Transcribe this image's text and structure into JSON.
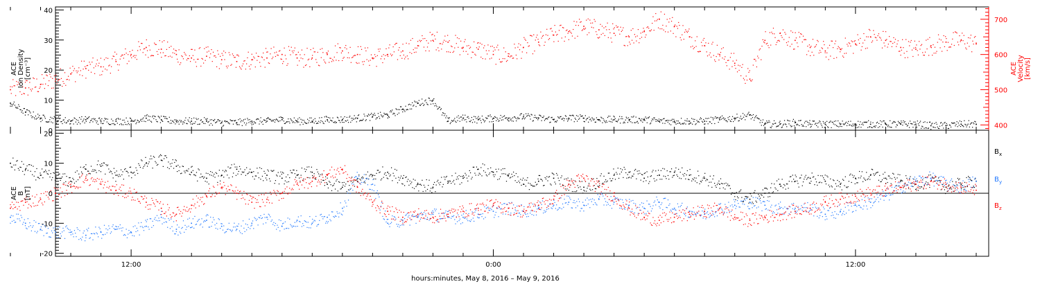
{
  "chart_data": [
    {
      "type": "scatter",
      "panel": "top",
      "ylabel_left": [
        "ACE",
        "Ion Density",
        "[cm⁻³]"
      ],
      "ylabel_right": [
        "ACE",
        "Velocity",
        "[km/s]"
      ],
      "ylim_left": [
        0,
        41
      ],
      "ylim_right": [
        385,
        735
      ],
      "yticks_left": [
        "0",
        "10",
        "20",
        "30",
        "40"
      ],
      "yticks_right": [
        "400",
        "500",
        "600",
        "700"
      ],
      "colors": {
        "density": "#000000",
        "velocity": "#ff0000"
      },
      "series": [
        {
          "name": "Ion Density",
          "axis": "left",
          "color": "#000000",
          "x_hours": [
            0,
            0.5,
            1,
            1.5,
            2,
            2.5,
            3,
            3.5,
            4,
            4.5,
            5,
            5.5,
            6,
            6.5,
            7,
            7.5,
            8,
            8.5,
            9,
            9.5,
            10,
            10.5,
            11,
            11.5,
            12,
            12.5,
            13,
            13.5,
            14,
            14.5,
            15,
            15.5,
            16,
            16.5,
            17,
            17.5,
            18,
            18.5,
            19,
            19.5,
            20,
            20.5,
            21,
            21.5,
            22,
            22.5,
            23,
            23.5,
            24,
            24.5,
            25,
            25.5,
            26,
            26.5,
            27,
            27.5,
            28,
            28.5,
            29,
            29.5,
            30,
            30.5,
            31,
            31.5,
            32
          ],
          "values": [
            9,
            6,
            4,
            3.5,
            3,
            3.5,
            3,
            3,
            3,
            4,
            3.5,
            3,
            3,
            3,
            2.5,
            2.5,
            3,
            3,
            3.5,
            3,
            3,
            3.5,
            3.5,
            4,
            4.5,
            5,
            7,
            9,
            10,
            3,
            4,
            3.5,
            4,
            4,
            4.5,
            4,
            3.5,
            4,
            4,
            3.5,
            3.5,
            3.5,
            3.5,
            3,
            3,
            3,
            3,
            3.5,
            4,
            5,
            2,
            2,
            2.5,
            2,
            2,
            2,
            2,
            2,
            2,
            2,
            2,
            1.5,
            1.5,
            2,
            2
          ]
        },
        {
          "name": "Velocity",
          "axis": "right",
          "color": "#ff0000",
          "x_hours": [
            0,
            0.5,
            1,
            1.5,
            2,
            2.5,
            3,
            3.5,
            4,
            4.5,
            5,
            5.5,
            6,
            6.5,
            7,
            7.5,
            8,
            8.5,
            9,
            9.5,
            10,
            10.5,
            11,
            11.5,
            12,
            12.5,
            13,
            13.5,
            14,
            14.5,
            15,
            15.5,
            16,
            16.5,
            17,
            17.5,
            18,
            18.5,
            19,
            19.5,
            20,
            20.5,
            21,
            21.5,
            22,
            22.5,
            23,
            23.5,
            24,
            24.5,
            25,
            25.5,
            26,
            26.5,
            27,
            27.5,
            28,
            28.5,
            29,
            29.5,
            30,
            30.5,
            31,
            31.5,
            32
          ],
          "values": [
            500,
            505,
            515,
            530,
            545,
            560,
            565,
            580,
            600,
            620,
            615,
            600,
            590,
            595,
            585,
            580,
            585,
            590,
            600,
            590,
            590,
            600,
            610,
            600,
            590,
            600,
            610,
            625,
            640,
            635,
            620,
            615,
            600,
            595,
            620,
            635,
            655,
            665,
            680,
            670,
            660,
            650,
            665,
            700,
            680,
            650,
            625,
            600,
            575,
            530,
            640,
            660,
            640,
            620,
            610,
            615,
            630,
            650,
            640,
            620,
            615,
            625,
            635,
            640,
            630
          ]
        }
      ]
    },
    {
      "type": "scatter",
      "panel": "bottom",
      "ylabel": [
        "ACE",
        "B",
        "[nT]"
      ],
      "ylim": [
        -21,
        21
      ],
      "yticks": [
        "-20",
        "-10",
        "0",
        "10",
        "20"
      ],
      "zero_line": true,
      "colors": {
        "Bx": "#000000",
        "By": "#1f77ff",
        "Bz": "#ff0000"
      },
      "legend": [
        {
          "label": "B",
          "sub": "x",
          "color": "#000000"
        },
        {
          "label": "B",
          "sub": "y",
          "color": "#1f77ff"
        },
        {
          "label": "B",
          "sub": "z",
          "color": "#ff0000"
        }
      ],
      "legend_position": "right",
      "series": [
        {
          "name": "Bx",
          "color": "#000000",
          "x_hours": [
            0,
            0.5,
            1,
            1.5,
            2,
            2.5,
            3,
            3.5,
            4,
            4.5,
            5,
            5.5,
            6,
            6.5,
            7,
            7.5,
            8,
            8.5,
            9,
            9.5,
            10,
            10.5,
            11,
            11.5,
            12,
            12.5,
            13,
            13.5,
            14,
            14.5,
            15,
            15.5,
            16,
            16.5,
            17,
            17.5,
            18,
            18.5,
            19,
            19.5,
            20,
            20.5,
            21,
            21.5,
            22,
            22.5,
            23,
            23.5,
            24,
            24.5,
            25,
            25.5,
            26,
            26.5,
            27,
            27.5,
            28,
            28.5,
            29,
            29.5,
            30,
            30.5,
            31,
            31.5,
            32
          ],
          "values": [
            10,
            8,
            6,
            5,
            4,
            8,
            9,
            6,
            7,
            10,
            11,
            9,
            7,
            5,
            6,
            8,
            7,
            6,
            5,
            6,
            7,
            3,
            2,
            4,
            6,
            7,
            5,
            3,
            2,
            4,
            5,
            8,
            7,
            6,
            3,
            4,
            5,
            3,
            2,
            4,
            6,
            7,
            5,
            6,
            7,
            6,
            5,
            3,
            0,
            -2,
            0,
            3,
            4,
            5,
            4,
            3,
            5,
            6,
            5,
            4,
            3,
            4,
            2,
            3,
            4
          ]
        },
        {
          "name": "By",
          "color": "#1f77ff",
          "x_hours": [
            0,
            0.5,
            1,
            1.5,
            2,
            2.5,
            3,
            3.5,
            4,
            4.5,
            5,
            5.5,
            6,
            6.5,
            7,
            7.5,
            8,
            8.5,
            9,
            9.5,
            10,
            10.5,
            11,
            11.5,
            12,
            12.5,
            13,
            13.5,
            14,
            14.5,
            15,
            15.5,
            16,
            16.5,
            17,
            17.5,
            18,
            18.5,
            19,
            19.5,
            20,
            20.5,
            21,
            21.5,
            22,
            22.5,
            23,
            23.5,
            24,
            24.5,
            25,
            25.5,
            26,
            26.5,
            27,
            27.5,
            28,
            28.5,
            29,
            29.5,
            30,
            30.5,
            31,
            31.5,
            32
          ],
          "values": [
            -8,
            -10,
            -12,
            -13,
            -13,
            -14,
            -13,
            -12,
            -13,
            -11,
            -8,
            -12,
            -10,
            -9,
            -11,
            -12,
            -10,
            -8,
            -11,
            -9,
            -10,
            -8,
            -5,
            5,
            3,
            -10,
            -9,
            -8,
            -7,
            -8,
            -8,
            -7,
            -6,
            -5,
            -6,
            -5,
            -4,
            -3,
            -4,
            -2,
            -3,
            -4,
            -5,
            -3,
            -5,
            -6,
            -7,
            -5,
            -4,
            -3,
            -4,
            -5,
            -5,
            -5,
            -7,
            -6,
            -4,
            -3,
            -1,
            2,
            4,
            5,
            3,
            2,
            4
          ]
        },
        {
          "name": "Bz",
          "color": "#ff0000",
          "x_hours": [
            0,
            0.5,
            1,
            1.5,
            2,
            2.5,
            3,
            3.5,
            4,
            4.5,
            5,
            5.5,
            6,
            6.5,
            7,
            7.5,
            8,
            8.5,
            9,
            9.5,
            10,
            10.5,
            11,
            11.5,
            12,
            12.5,
            13,
            13.5,
            14,
            14.5,
            15,
            15.5,
            16,
            16.5,
            17,
            17.5,
            18,
            18.5,
            19,
            19.5,
            20,
            20.5,
            21,
            21.5,
            22,
            22.5,
            23,
            23.5,
            24,
            24.5,
            25,
            25.5,
            26,
            26.5,
            27,
            27.5,
            28,
            28.5,
            29,
            29.5,
            30,
            30.5,
            31,
            31.5,
            32
          ],
          "values": [
            -5,
            -3,
            -2,
            0,
            2,
            5,
            3,
            1,
            0,
            -3,
            -5,
            -7,
            -4,
            -1,
            2,
            0,
            -3,
            -2,
            0,
            3,
            4,
            6,
            8,
            2,
            -3,
            -6,
            -8,
            -7,
            -8,
            -7,
            -6,
            -5,
            -4,
            -5,
            -6,
            -4,
            -2,
            3,
            5,
            2,
            -1,
            -5,
            -8,
            -9,
            -8,
            -7,
            -6,
            -5,
            -8,
            -9,
            -8,
            -7,
            -6,
            -5,
            -3,
            -2,
            -1,
            0,
            1,
            2,
            3,
            4,
            3,
            2,
            1
          ]
        }
      ]
    }
  ],
  "x_axis": {
    "range_hours": [
      0,
      32
    ],
    "tick_labels": [
      "12:00",
      "0:00",
      "12:00"
    ],
    "tick_hours": [
      4,
      16,
      28
    ],
    "xlabel": "hours:minutes, May  8, 2016 – May  9, 2016"
  }
}
